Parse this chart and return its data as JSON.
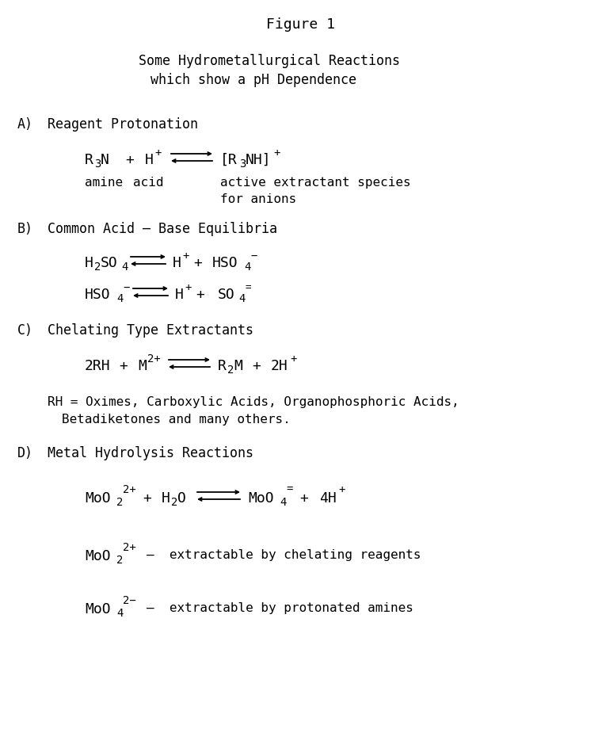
{
  "title": "Figure 1",
  "subtitle_line1": "Some Hydrometallurgical Reactions",
  "subtitle_line2": "which show a pH Dependence",
  "bg_color": "#ffffff",
  "text_color": "#000000",
  "fig_width": 7.6,
  "fig_height": 9.49,
  "dpi": 100
}
